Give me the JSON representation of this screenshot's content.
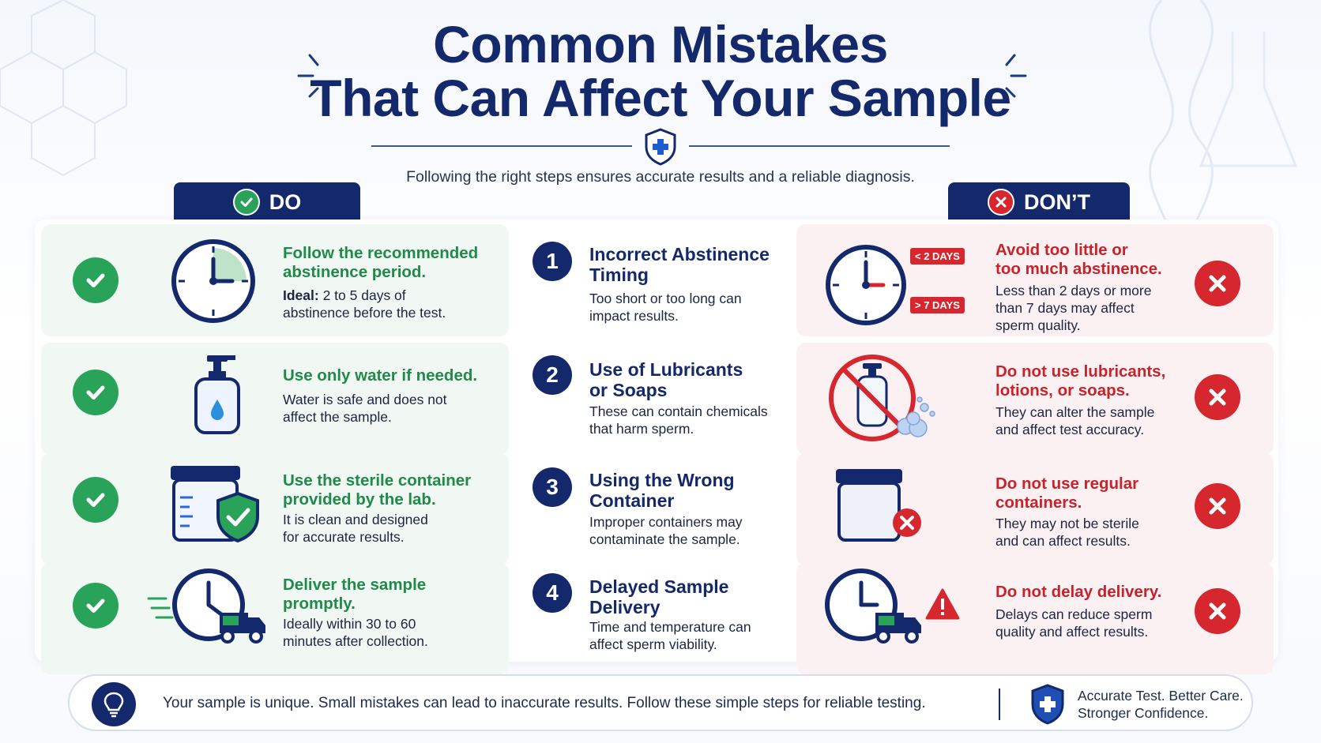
{
  "header": {
    "title_line1": "Common Mistakes",
    "title_line2": "That Can Affect Your Sample",
    "subtitle": "Following the right steps ensures accurate results and a reliable diagnosis."
  },
  "tabs": {
    "do_label": "DO",
    "dont_label": "DON’T"
  },
  "rows": [
    {
      "do_head_1": "Follow the recommended",
      "do_head_2": "abstinence period.",
      "do_body_bold": "Ideal:",
      "do_body_1": " 2 to 5 days of",
      "do_body_2": "abstinence before the test.",
      "number": "1",
      "mistake_1": "Incorrect Abstinence",
      "mistake_2": "Timing",
      "mistake_body_1": "Too short or too long can",
      "mistake_body_2": "impact results.",
      "dont_head_1": "Avoid too little or",
      "dont_head_2": "too much abstinence.",
      "dont_body_1": "Less than 2 days or more",
      "dont_body_2": "than 7 days may affect",
      "dont_body_3": "sperm quality.",
      "tag_low": "< 2 DAYS",
      "tag_high": "> 7 DAYS"
    },
    {
      "do_head_1": "Use only water if needed.",
      "do_body_1": "Water is safe and does not",
      "do_body_2": "affect the sample.",
      "number": "2",
      "mistake_1": "Use of Lubricants",
      "mistake_2": "or Soaps",
      "mistake_body_1": "These can contain chemicals",
      "mistake_body_2": "that harm sperm.",
      "dont_head_1": "Do not use lubricants,",
      "dont_head_2": "lotions, or soaps.",
      "dont_body_1": "They can alter the sample",
      "dont_body_2": "and affect test accuracy."
    },
    {
      "do_head_1": "Use the sterile container",
      "do_head_2": "provided by the lab.",
      "do_body_1": "It is clean and designed",
      "do_body_2": "for accurate results.",
      "number": "3",
      "mistake_1": "Using the Wrong",
      "mistake_2": "Container",
      "mistake_body_1": "Improper containers may",
      "mistake_body_2": "contaminate the sample.",
      "dont_head_1": "Do not use regular",
      "dont_head_2": "containers.",
      "dont_body_1": "They may not be sterile",
      "dont_body_2": "and can affect results."
    },
    {
      "do_head_1": "Deliver the sample",
      "do_head_2": "promptly.",
      "do_body_1": "Ideally within 30 to 60",
      "do_body_2": "minutes after collection.",
      "number": "4",
      "mistake_1": "Delayed Sample",
      "mistake_2": "Delivery",
      "mistake_body_1": "Time and temperature can",
      "mistake_body_2": "affect sperm viability.",
      "dont_head_1": "Do not delay delivery.",
      "dont_body_1": "Delays can reduce sperm",
      "dont_body_2": "quality and affect results."
    }
  ],
  "footer": {
    "message": "Your sample is unique. Small mistakes can lead to inaccurate results. Follow these simple steps for reliable testing.",
    "tagline_1": "Accurate Test. Better Care.",
    "tagline_2": "Stronger Confidence."
  },
  "colors": {
    "navy": "#14296b",
    "green": "#2aa35a",
    "red": "#d6262e"
  },
  "icons": [
    "check-icon",
    "x-icon",
    "clock-icon",
    "pump-bottle-icon",
    "container-icon",
    "shield-check-icon",
    "delivery-truck-icon",
    "no-sign-icon",
    "warning-icon",
    "lightbulb-icon",
    "shield-cross-icon"
  ]
}
